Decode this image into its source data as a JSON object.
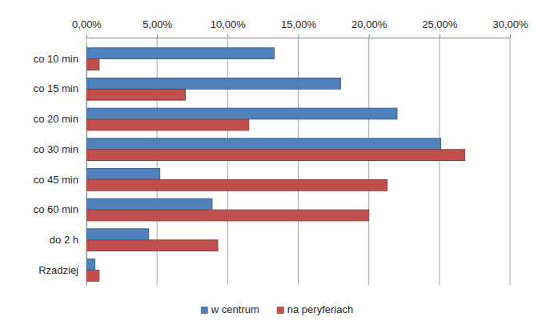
{
  "chart_data": {
    "type": "bar",
    "orientation": "horizontal",
    "categories": [
      "co 10 min",
      "co 15 min",
      "co 20 min",
      "co 30 min",
      "co 45 min",
      "co 60 min",
      "do 2 h",
      "Rzadziej"
    ],
    "series": [
      {
        "name": "w centrum",
        "color": "#4f81bd",
        "values": [
          13.3,
          18.0,
          22.0,
          25.1,
          5.2,
          8.9,
          4.4,
          0.6
        ]
      },
      {
        "name": "na peryferiach",
        "color": "#c0504d",
        "values": [
          0.9,
          7.0,
          11.5,
          26.8,
          21.3,
          20.0,
          9.3,
          0.9
        ]
      }
    ],
    "xlim": [
      0,
      30
    ],
    "xticks": [
      {
        "value": 0,
        "label": "0,00%"
      },
      {
        "value": 5,
        "label": "5,00%"
      },
      {
        "value": 10,
        "label": "10,00%"
      },
      {
        "value": 15,
        "label": "15,00%"
      },
      {
        "value": 20,
        "label": "20,00%"
      },
      {
        "value": 25,
        "label": "25,00%"
      },
      {
        "value": 30,
        "label": "30,00%"
      }
    ],
    "grid": true,
    "legend": "bottom"
  }
}
